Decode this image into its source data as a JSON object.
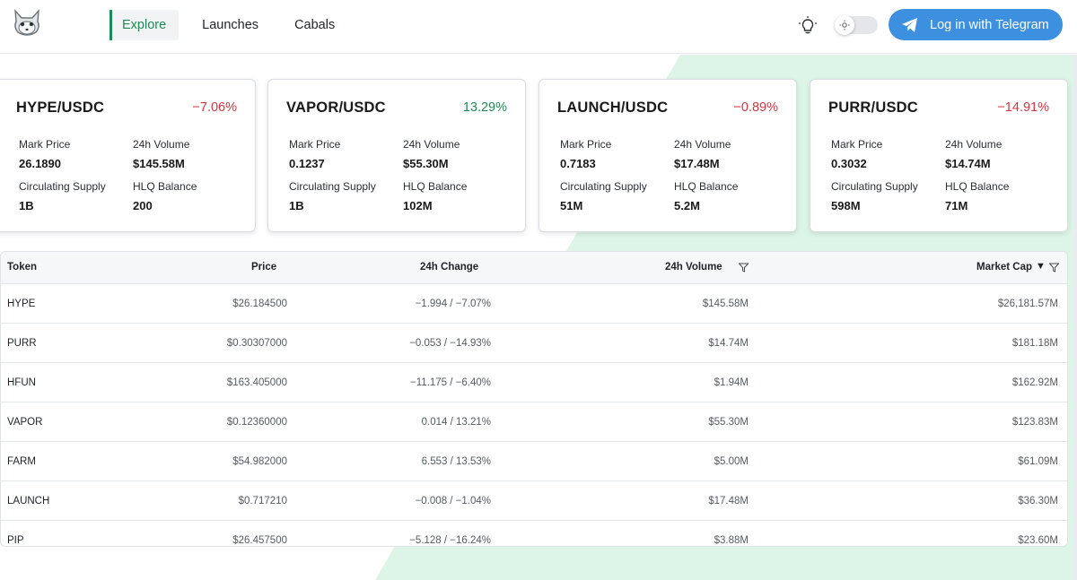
{
  "header": {
    "nav": [
      {
        "label": "Explore",
        "active": true
      },
      {
        "label": "Launches",
        "active": false
      },
      {
        "label": "Cabals",
        "active": false
      }
    ],
    "login_label": "Log in with Telegram",
    "icons": {
      "logo": "fox-logo-icon",
      "theme": "lightbulb-icon",
      "toggle": "sun-icon",
      "telegram": "telegram-icon"
    }
  },
  "cards": [
    {
      "pair": "HYPE/USDC",
      "change": "−7.06%",
      "direction": "neg",
      "mark_label": "Mark Price",
      "mark": "26.1890",
      "vol_label": "24h Volume",
      "vol": "$145.58M",
      "supply_label": "Circulating Supply",
      "supply": "1B",
      "hlq_label": "HLQ Balance",
      "hlq": "200"
    },
    {
      "pair": "VAPOR/USDC",
      "change": "13.29%",
      "direction": "pos",
      "mark_label": "Mark Price",
      "mark": "0.1237",
      "vol_label": "24h Volume",
      "vol": "$55.30M",
      "supply_label": "Circulating Supply",
      "supply": "1B",
      "hlq_label": "HLQ Balance",
      "hlq": "102M"
    },
    {
      "pair": "LAUNCH/USDC",
      "change": "−0.89%",
      "direction": "neg",
      "mark_label": "Mark Price",
      "mark": "0.7183",
      "vol_label": "24h Volume",
      "vol": "$17.48M",
      "supply_label": "Circulating Supply",
      "supply": "51M",
      "hlq_label": "HLQ Balance",
      "hlq": "5.2M"
    },
    {
      "pair": "PURR/USDC",
      "change": "−14.91%",
      "direction": "neg",
      "mark_label": "Mark Price",
      "mark": "0.3032",
      "vol_label": "24h Volume",
      "vol": "$14.74M",
      "supply_label": "Circulating Supply",
      "supply": "598M",
      "hlq_label": "HLQ Balance",
      "hlq": "71M"
    }
  ],
  "table": {
    "columns": {
      "token": "Token",
      "price": "Price",
      "change": "24h Change",
      "volume": "24h Volume",
      "mcap": "Market Cap"
    },
    "sort_indicator": "▼",
    "rows": [
      {
        "token": "HYPE",
        "price": "$26.184500",
        "change": "−1.994 / −7.07%",
        "direction": "neg",
        "volume": "$145.58M",
        "mcap": "$26,181.57M"
      },
      {
        "token": "PURR",
        "price": "$0.30307000",
        "change": "−0.053 / −14.93%",
        "direction": "neg",
        "volume": "$14.74M",
        "mcap": "$181.18M"
      },
      {
        "token": "HFUN",
        "price": "$163.405000",
        "change": "−11.175 / −6.40%",
        "direction": "neg",
        "volume": "$1.94M",
        "mcap": "$162.92M"
      },
      {
        "token": "VAPOR",
        "price": "$0.12360000",
        "change": "0.014 / 13.21%",
        "direction": "pos",
        "volume": "$55.30M",
        "mcap": "$123.83M"
      },
      {
        "token": "FARM",
        "price": "$54.982000",
        "change": "6.553 / 13.53%",
        "direction": "pos",
        "volume": "$5.00M",
        "mcap": "$61.09M"
      },
      {
        "token": "LAUNCH",
        "price": "$0.717210",
        "change": "−0.008 / −1.04%",
        "direction": "neg",
        "volume": "$17.48M",
        "mcap": "$36.30M"
      },
      {
        "token": "PIP",
        "price": "$26.457500",
        "change": "−5.128 / −16.24%",
        "direction": "neg",
        "volume": "$3.88M",
        "mcap": "$23.60M"
      }
    ]
  },
  "colors": {
    "accent_green": "#1f8a55",
    "negative_red": "#d8343f",
    "telegram_blue": "#3d8fe0",
    "mint_bg": "#d9f5e6"
  }
}
